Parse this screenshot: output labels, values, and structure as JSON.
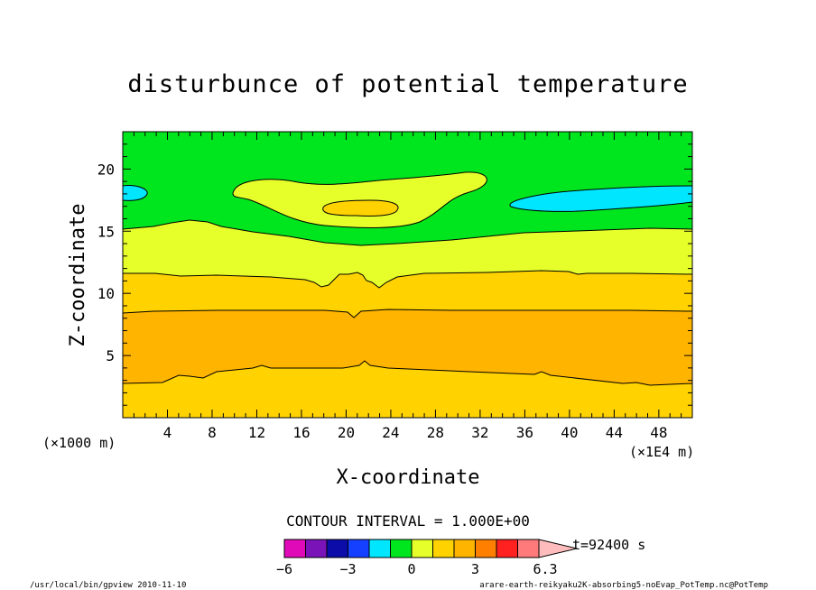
{
  "chart_data": {
    "type": "contour",
    "title": "disturbunce of potential temperature",
    "xlabel": "X-coordinate",
    "ylabel": "Z-coordinate",
    "x_ticks": [
      "4",
      "8",
      "12",
      "16",
      "20",
      "24",
      "28",
      "32",
      "36",
      "40",
      "44",
      "48"
    ],
    "y_ticks": [
      "5",
      "10",
      "15",
      "20"
    ],
    "y_scale_label": "(×1000 m)",
    "x_scale_label": "(×1E4 m)",
    "xlim": [
      0,
      51
    ],
    "ylim": [
      0,
      23
    ],
    "contour_interval_label": "CONTOUR INTERVAL = 1.000E+00",
    "colorbar": {
      "levels": [
        -6,
        -5,
        -4,
        -3,
        -2,
        -1,
        0,
        1,
        2,
        3,
        4,
        5,
        6
      ],
      "tick_labels": [
        "−6",
        "−3",
        "0",
        "3",
        "6.3"
      ],
      "tick_values": [
        -6,
        -3,
        0,
        3,
        6.3
      ],
      "colors": [
        "#e00ab8",
        "#7a14b8",
        "#0c0ca8",
        "#1640ff",
        "#00e6ff",
        "#00e61e",
        "#e6ff2a",
        "#ffd200",
        "#ffb400",
        "#ff7f00",
        "#ff2020",
        "#ff7b7b",
        "#ffbcbc"
      ]
    },
    "time_label": "t=92400 s"
  },
  "footer": {
    "left": "/usr/local/bin/gpview  2010-11-10",
    "right": "arare-earth-reikyaku2K-absorbing5-noEvap_PotTemp.nc@PotTemp"
  }
}
